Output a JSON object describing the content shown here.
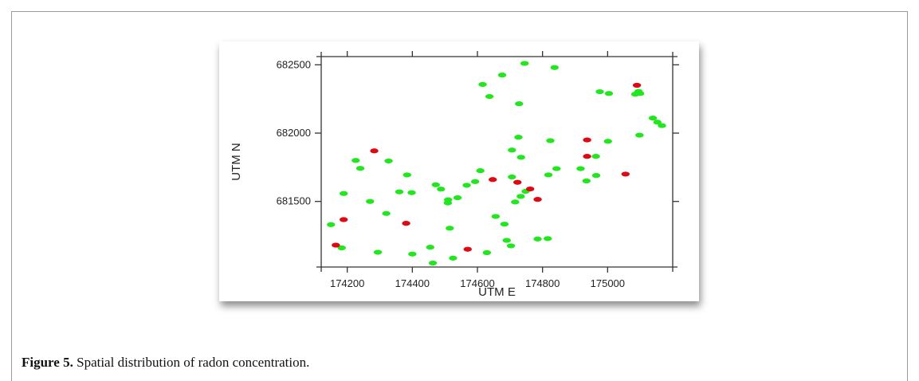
{
  "figure": {
    "caption_label": "Figure 5.",
    "caption_text": " Spatial distribution of radon concentration."
  },
  "colors": {
    "high": "#dd0a14",
    "low": "#22e61e",
    "axis": "#333333"
  },
  "chart_data": {
    "type": "scatter",
    "title": "",
    "xlabel": "UTM E",
    "ylabel": "UTM N",
    "xlim": [
      174120,
      175200
    ],
    "ylim": [
      681020,
      682560
    ],
    "xticks": [
      174200,
      174400,
      174600,
      174800,
      175000
    ],
    "xtick_labels": [
      "174200",
      "174400",
      "174600",
      "174800",
      "175000"
    ],
    "yticks": [
      681500,
      682000,
      682500
    ],
    "ytick_labels": [
      "681500",
      "682000",
      "682500"
    ],
    "grid": false,
    "series": [
      {
        "color": "#22e61e",
        "points": [
          [
            174150,
            681330
          ],
          [
            174183,
            681160
          ],
          [
            174189,
            681558
          ],
          [
            174226,
            681800
          ],
          [
            174240,
            681742
          ],
          [
            174270,
            681500
          ],
          [
            174294,
            681128
          ],
          [
            174320,
            681412
          ],
          [
            174327,
            681796
          ],
          [
            174360,
            681570
          ],
          [
            174384,
            681694
          ],
          [
            174398,
            681564
          ],
          [
            174400,
            681115
          ],
          [
            174455,
            681165
          ],
          [
            174463,
            681049
          ],
          [
            174472,
            681622
          ],
          [
            174488,
            681590
          ],
          [
            174509,
            681489
          ],
          [
            174510,
            681512
          ],
          [
            174515,
            681304
          ],
          [
            174525,
            681085
          ],
          [
            174539,
            681527
          ],
          [
            174567,
            681618
          ],
          [
            174593,
            681645
          ],
          [
            174609,
            681725
          ],
          [
            174616,
            682356
          ],
          [
            174629,
            681125
          ],
          [
            174637,
            682268
          ],
          [
            174656,
            681390
          ],
          [
            174676,
            682425
          ],
          [
            174683,
            681334
          ],
          [
            174690,
            681215
          ],
          [
            174703,
            681175
          ],
          [
            174706,
            681679
          ],
          [
            174706,
            681876
          ],
          [
            174716,
            681496
          ],
          [
            174726,
            681970
          ],
          [
            174728,
            682215
          ],
          [
            174733,
            681537
          ],
          [
            174734,
            681823
          ],
          [
            174745,
            682510
          ],
          [
            174748,
            681574
          ],
          [
            174785,
            681225
          ],
          [
            174816,
            681228
          ],
          [
            174818,
            681694
          ],
          [
            174824,
            681945
          ],
          [
            174837,
            682480
          ],
          [
            174843,
            681740
          ],
          [
            174917,
            681740
          ],
          [
            174935,
            681650
          ],
          [
            174964,
            681830
          ],
          [
            174965,
            681690
          ],
          [
            174976,
            682303
          ],
          [
            175001,
            681940
          ],
          [
            175004,
            682290
          ],
          [
            175085,
            682285
          ],
          [
            175095,
            682305
          ],
          [
            175098,
            681985
          ],
          [
            175100,
            682290
          ],
          [
            175139,
            682110
          ],
          [
            175153,
            682080
          ],
          [
            175167,
            682055
          ]
        ]
      },
      {
        "color": "#dd0a14",
        "points": [
          [
            174165,
            681180
          ],
          [
            174189,
            681367
          ],
          [
            174283,
            681870
          ],
          [
            174381,
            681340
          ],
          [
            174570,
            681150
          ],
          [
            174647,
            681660
          ],
          [
            174723,
            681640
          ],
          [
            174762,
            681591
          ],
          [
            174785,
            681515
          ],
          [
            174937,
            681950
          ],
          [
            174937,
            681830
          ],
          [
            175055,
            681700
          ],
          [
            175090,
            682350
          ]
        ]
      }
    ]
  }
}
